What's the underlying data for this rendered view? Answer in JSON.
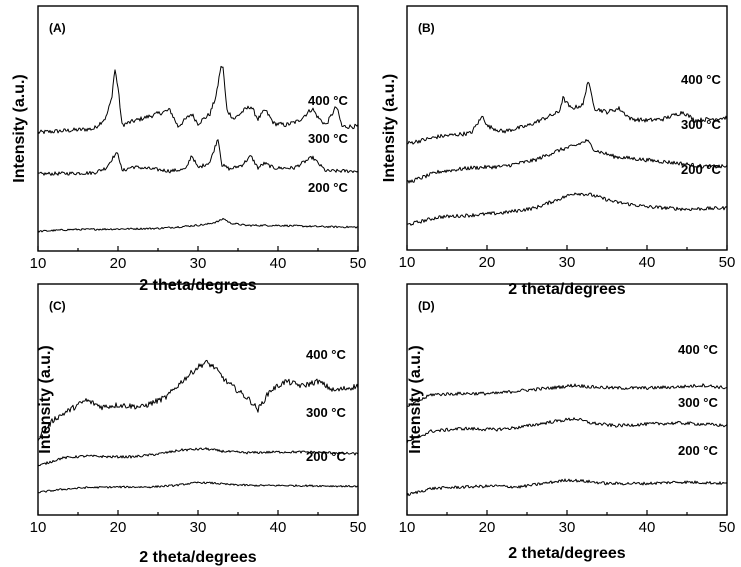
{
  "chart_data": [
    {
      "type": "line",
      "panel_label": "(A)",
      "xlabel": "2 theta/degrees",
      "ylabel": "Intensity (a.u.)",
      "xlim": [
        10,
        50
      ],
      "xticks": [
        10,
        20,
        30,
        40,
        50
      ],
      "series": [
        {
          "name": "400 °C",
          "x": [
            10,
            17,
            18.5,
            19.2,
            19.6,
            20,
            20.5,
            21.9,
            26.5,
            27.5,
            29.2,
            30,
            31.5,
            32.3,
            32.8,
            33.1,
            33.6,
            34.5,
            35.8,
            36.6,
            37.5,
            38.4,
            39.5,
            41,
            42.5,
            44.3,
            45,
            46,
            47.3,
            48,
            50
          ],
          "y": [
            0.1,
            0.15,
            0.3,
            0.55,
            0.95,
            0.7,
            0.2,
            0.25,
            0.4,
            0.18,
            0.35,
            0.22,
            0.35,
            0.6,
            0.95,
            1.0,
            0.4,
            0.28,
            0.4,
            0.45,
            0.28,
            0.4,
            0.22,
            0.2,
            0.25,
            0.42,
            0.3,
            0.2,
            0.45,
            0.18,
            0.18
          ]
        },
        {
          "name": "300 °C",
          "x": [
            10,
            17,
            18.5,
            19.5,
            20,
            20.5,
            21.8,
            26.5,
            28.5,
            29.2,
            30,
            31.5,
            32.5,
            33,
            34,
            35.5,
            36.6,
            37.5,
            38.3,
            39.5,
            42,
            44.3,
            45,
            46,
            48,
            50
          ],
          "y": [
            0.1,
            0.12,
            0.2,
            0.4,
            0.45,
            0.15,
            0.22,
            0.15,
            0.18,
            0.42,
            0.2,
            0.3,
            0.7,
            0.25,
            0.18,
            0.25,
            0.4,
            0.2,
            0.28,
            0.2,
            0.2,
            0.38,
            0.28,
            0.15,
            0.15,
            0.15
          ]
        },
        {
          "name": "200 °C",
          "x": [
            10,
            14,
            20,
            25,
            28,
            31,
            32.5,
            33.2,
            34,
            36,
            40,
            45,
            50
          ],
          "y": [
            0.02,
            0.08,
            0.1,
            0.12,
            0.18,
            0.25,
            0.35,
            0.45,
            0.3,
            0.22,
            0.22,
            0.18,
            0.16
          ]
        }
      ]
    },
    {
      "type": "line",
      "panel_label": "(B)",
      "xlabel": "2 theta/degrees",
      "ylabel": "Intensity (a.u.)",
      "xlim": [
        10,
        50
      ],
      "xticks": [
        10,
        20,
        30,
        40,
        50
      ],
      "series": [
        {
          "name": "400 °C",
          "x": [
            10,
            14,
            18,
            19.5,
            20,
            22,
            25,
            27,
            29,
            29.5,
            30.5,
            32,
            32.6,
            33.5,
            35,
            36.5,
            38,
            40,
            42,
            44.5,
            46,
            48,
            50
          ],
          "y": [
            0.05,
            0.15,
            0.2,
            0.45,
            0.3,
            0.22,
            0.3,
            0.4,
            0.5,
            0.7,
            0.55,
            0.6,
            0.95,
            0.55,
            0.5,
            0.55,
            0.4,
            0.38,
            0.4,
            0.5,
            0.38,
            0.4,
            0.42
          ]
        },
        {
          "name": "300 °C",
          "x": [
            10,
            14,
            18,
            22,
            26,
            29,
            31,
            32.5,
            33.5,
            36,
            40,
            44,
            47,
            50
          ],
          "y": [
            0.05,
            0.22,
            0.28,
            0.3,
            0.4,
            0.55,
            0.62,
            0.7,
            0.55,
            0.45,
            0.4,
            0.35,
            0.3,
            0.3
          ]
        },
        {
          "name": "200 °C",
          "x": [
            10,
            14,
            18,
            22,
            26,
            29,
            31,
            33,
            36,
            40,
            45,
            50
          ],
          "y": [
            0.02,
            0.15,
            0.18,
            0.22,
            0.3,
            0.45,
            0.55,
            0.52,
            0.4,
            0.32,
            0.28,
            0.3
          ]
        }
      ]
    },
    {
      "type": "line",
      "panel_label": "(C)",
      "xlabel": "2 theta/degrees",
      "ylabel": "Intensity (a.u.)",
      "xlim": [
        10,
        50
      ],
      "xticks": [
        10,
        20,
        30,
        40,
        50
      ],
      "series": [
        {
          "name": "400 °C",
          "x": [
            10,
            12,
            14,
            16,
            18,
            20,
            23,
            26,
            28,
            30,
            31,
            32,
            33.5,
            35,
            36.5,
            37.5,
            39,
            41,
            43,
            45,
            47,
            50
          ],
          "y": [
            0.05,
            0.25,
            0.35,
            0.45,
            0.38,
            0.4,
            0.38,
            0.48,
            0.65,
            0.8,
            0.85,
            0.8,
            0.65,
            0.55,
            0.45,
            0.35,
            0.55,
            0.65,
            0.6,
            0.65,
            0.55,
            0.6
          ]
        },
        {
          "name": "300 °C",
          "x": [
            10,
            13,
            16,
            19,
            22,
            25,
            28,
            31,
            33,
            36,
            40,
            44,
            47,
            50
          ],
          "y": [
            0.05,
            0.25,
            0.3,
            0.28,
            0.28,
            0.35,
            0.45,
            0.48,
            0.42,
            0.38,
            0.4,
            0.4,
            0.38,
            0.35
          ]
        },
        {
          "name": "200 °C",
          "x": [
            10,
            13,
            16,
            20,
            24,
            27,
            30,
            32,
            34,
            37,
            40,
            45,
            50
          ],
          "y": [
            0.02,
            0.12,
            0.18,
            0.2,
            0.2,
            0.25,
            0.35,
            0.33,
            0.28,
            0.25,
            0.25,
            0.24,
            0.22
          ]
        }
      ]
    },
    {
      "type": "line",
      "panel_label": "(D)",
      "xlabel": "2 theta/degrees",
      "ylabel": "Intensity (a.u.)",
      "xlim": [
        10,
        50
      ],
      "xticks": [
        10,
        20,
        30,
        40,
        50
      ],
      "series": [
        {
          "name": "400 °C",
          "x": [
            10,
            13,
            17,
            21,
            24,
            28,
            31,
            33,
            36,
            40,
            44,
            47,
            50
          ],
          "y": [
            0.05,
            0.28,
            0.3,
            0.3,
            0.35,
            0.4,
            0.45,
            0.42,
            0.4,
            0.4,
            0.42,
            0.45,
            0.4
          ]
        },
        {
          "name": "300 °C",
          "x": [
            10,
            13,
            17,
            21,
            24,
            28,
            31,
            33,
            36,
            40,
            44,
            47,
            50
          ],
          "y": [
            0.05,
            0.25,
            0.3,
            0.28,
            0.32,
            0.42,
            0.48,
            0.4,
            0.35,
            0.38,
            0.4,
            0.38,
            0.35
          ]
        },
        {
          "name": "200 °C",
          "x": [
            10,
            13,
            17,
            21,
            24,
            27,
            30,
            32,
            35,
            40,
            44,
            47,
            50
          ],
          "y": [
            0.02,
            0.15,
            0.18,
            0.2,
            0.18,
            0.25,
            0.32,
            0.3,
            0.25,
            0.25,
            0.28,
            0.27,
            0.25
          ]
        }
      ]
    }
  ]
}
